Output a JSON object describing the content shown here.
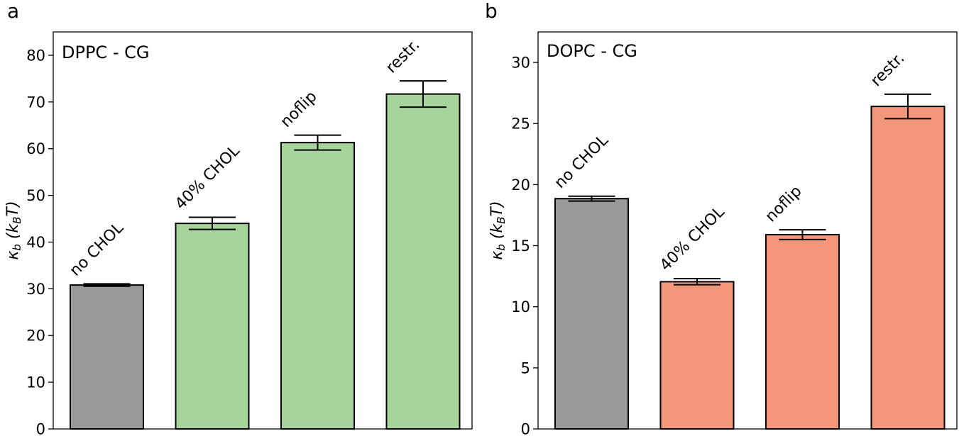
{
  "figure": {
    "panel_letters": [
      "a",
      "b"
    ]
  },
  "chart_data": [
    {
      "type": "bar",
      "panel": "a",
      "title": "DPPC - CG",
      "ylabel_main": "κ",
      "ylabel_sub": "b",
      "ylabel_unit_open": "(k",
      "ylabel_unit_sub": "B",
      "ylabel_unit_close": "T)",
      "ylim": [
        0,
        85
      ],
      "yticks": [
        0,
        10,
        20,
        30,
        40,
        50,
        60,
        70,
        80
      ],
      "bars": [
        {
          "label": "no CHOL",
          "value": 30.8,
          "error": 0.25,
          "color": "#999999"
        },
        {
          "label": "40% CHOL",
          "value": 44.0,
          "error": 1.3,
          "color": "#a6d49a"
        },
        {
          "label": "noflip",
          "value": 61.3,
          "error": 1.6,
          "color": "#a6d49a"
        },
        {
          "label": "restr.",
          "value": 71.7,
          "error": 2.8,
          "color": "#a6d49a"
        }
      ]
    },
    {
      "type": "bar",
      "panel": "b",
      "title": "DOPC - CG",
      "ylabel_main": "κ",
      "ylabel_sub": "b",
      "ylabel_unit_open": "(k",
      "ylabel_unit_sub": "B",
      "ylabel_unit_close": "T)",
      "ylim": [
        0,
        32.5
      ],
      "yticks": [
        0,
        5,
        10,
        15,
        20,
        25,
        30
      ],
      "bars": [
        {
          "label": "no CHOL",
          "value": 18.85,
          "error": 0.2,
          "color": "#999999"
        },
        {
          "label": "40% CHOL",
          "value": 12.05,
          "error": 0.25,
          "color": "#f4967a"
        },
        {
          "label": "noflip",
          "value": 15.9,
          "error": 0.4,
          "color": "#f4967a"
        },
        {
          "label": "restr.",
          "value": 26.4,
          "error": 1.0,
          "color": "#f4967a"
        }
      ]
    }
  ]
}
